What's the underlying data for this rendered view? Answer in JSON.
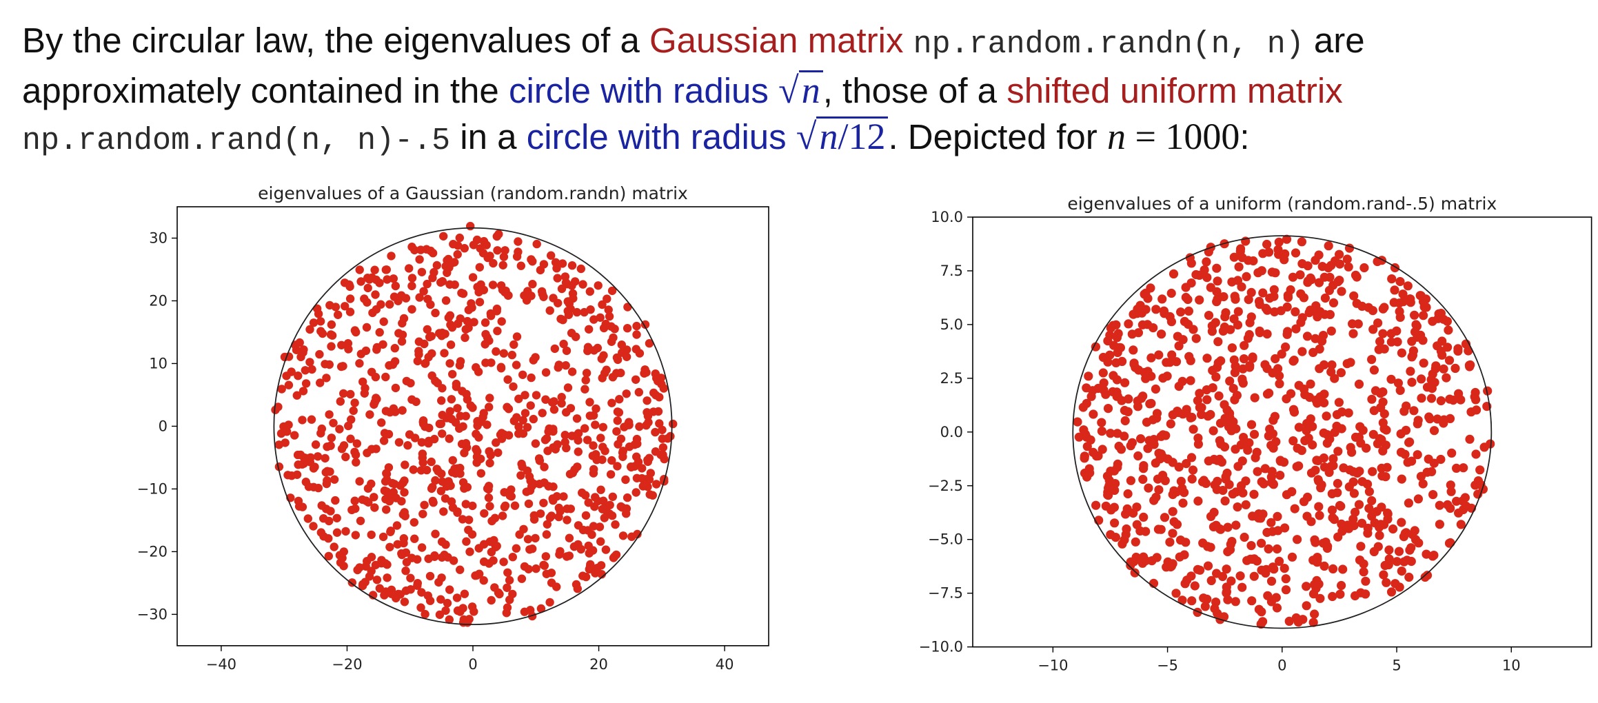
{
  "colors": {
    "text": "#111111",
    "red": "#a61e1e",
    "blue": "#1a23a0",
    "dots": "#d9281a",
    "circle": "#222222"
  },
  "intro": {
    "s1": "By the circular law, the eigenvalues of a ",
    "gaussian": "Gaussian matrix",
    "s2": " ",
    "code_randn": "np.random.randn(n, n)",
    "s3": " are approximately contained in the ",
    "circle1": "circle with radius",
    "sqrt_n": "n",
    "s4": ", those of a ",
    "shifted": "shifted uniform matrix",
    "code_rand": "np.random.rand(n, n)-.5",
    "s5": " in a ",
    "circle2": "circle with radius",
    "sqrt_n12_var": "n",
    "sqrt_n12_rest": "/12",
    "s6": ". Depicted for ",
    "n_var": "n",
    "n_eq": " = 1000",
    "s7": ":"
  },
  "chart_data": [
    {
      "type": "scatter",
      "title": "eigenvalues of a Gaussian (random.randn) matrix",
      "xlabel": "",
      "ylabel": "",
      "xlim": [
        -47,
        47
      ],
      "ylim": [
        -35,
        35
      ],
      "xticks": [
        -40,
        -20,
        0,
        20,
        40
      ],
      "yticks": [
        -30,
        -20,
        -10,
        0,
        10,
        20,
        30
      ],
      "xtick_labels": [
        "−40",
        "−20",
        "0",
        "20",
        "40"
      ],
      "ytick_labels": [
        "−30",
        "−20",
        "−10",
        "0",
        "10",
        "20",
        "30"
      ],
      "circle_radius": 31.62,
      "n": 1000,
      "grid": false,
      "legend": "none"
    },
    {
      "type": "scatter",
      "title": "eigenvalues of a uniform (random.rand-.5) matrix",
      "xlabel": "",
      "ylabel": "",
      "xlim": [
        -13.5,
        13.5
      ],
      "ylim": [
        -10,
        10
      ],
      "xticks": [
        -10,
        -5,
        0,
        5,
        10
      ],
      "yticks": [
        -10,
        -7.5,
        -5,
        -2.5,
        0,
        2.5,
        5,
        7.5,
        10
      ],
      "xtick_labels": [
        "−10",
        "−5",
        "0",
        "5",
        "10"
      ],
      "ytick_labels": [
        "−10.0",
        "−7.5",
        "−5.0",
        "−2.5",
        "0.0",
        "2.5",
        "5.0",
        "7.5",
        "10.0"
      ],
      "circle_radius": 9.13,
      "n": 1000,
      "grid": false,
      "legend": "none"
    }
  ]
}
